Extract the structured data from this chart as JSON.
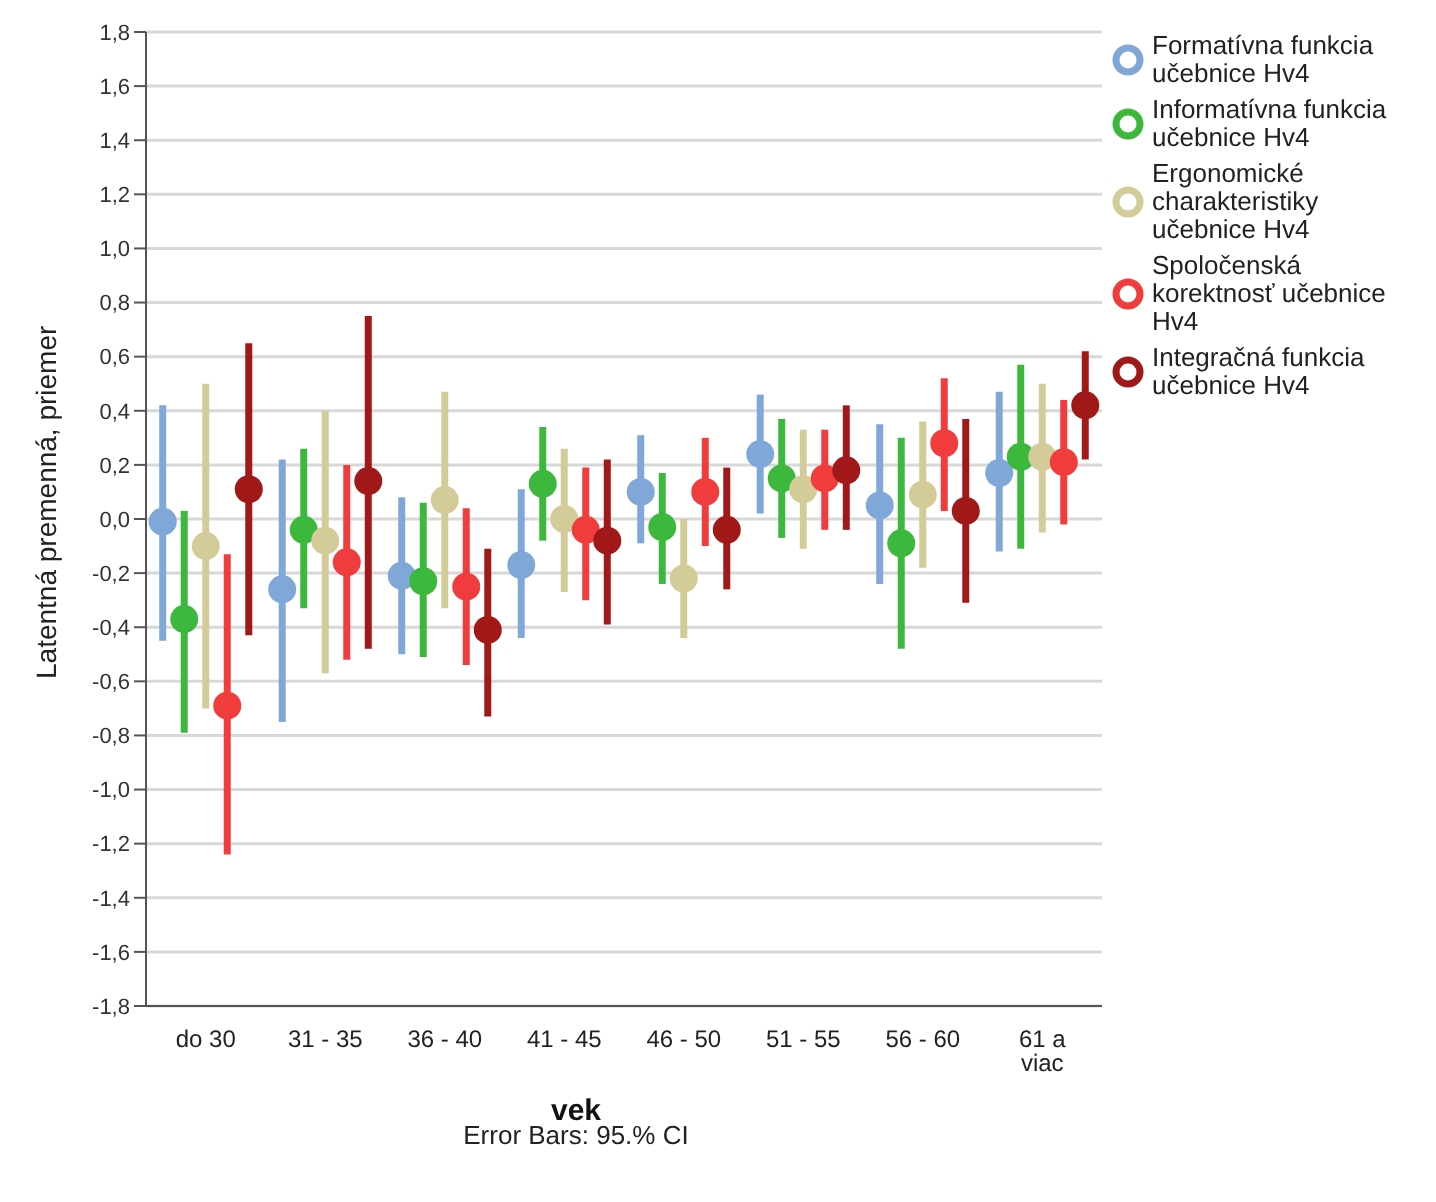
{
  "chart_data": {
    "type": "scatter",
    "xlabel": "vek",
    "ylabel": "Latentná premenná, priemer",
    "annotations": [
      "Error Bars: 95.% CI"
    ],
    "categories": [
      "do 30",
      "31 - 35",
      "36 - 40",
      "41 - 45",
      "46 - 50",
      "51 - 55",
      "56 - 60",
      "61 a viac"
    ],
    "series": [
      {
        "name": "Formatívna funkcia učebnice Hv4",
        "color": "#7fa8d8",
        "values": [
          -0.01,
          -0.26,
          -0.21,
          -0.17,
          0.1,
          0.24,
          0.05,
          0.17
        ],
        "errors": [
          [
            -0.45,
            0.42
          ],
          [
            -0.75,
            0.22
          ],
          [
            -0.5,
            0.08
          ],
          [
            -0.44,
            0.11
          ],
          [
            -0.09,
            0.31
          ],
          [
            0.02,
            0.46
          ],
          [
            -0.24,
            0.35
          ],
          [
            -0.12,
            0.47
          ]
        ]
      },
      {
        "name": "Informatívna funkcia učebnice Hv4",
        "color": "#3cb83c",
        "values": [
          -0.37,
          -0.04,
          -0.23,
          0.13,
          -0.03,
          0.15,
          -0.09,
          0.23
        ],
        "errors": [
          [
            -0.79,
            0.03
          ],
          [
            -0.33,
            0.26
          ],
          [
            -0.51,
            0.06
          ],
          [
            -0.08,
            0.34
          ],
          [
            -0.24,
            0.17
          ],
          [
            -0.07,
            0.37
          ],
          [
            -0.48,
            0.3
          ],
          [
            -0.11,
            0.57
          ]
        ]
      },
      {
        "name": "Ergonomické charakteristiky učebnice Hv4",
        "color": "#d4cc98",
        "values": [
          -0.1,
          -0.08,
          0.07,
          0.0,
          -0.22,
          0.11,
          0.09,
          0.23
        ],
        "errors": [
          [
            -0.7,
            0.5
          ],
          [
            -0.57,
            0.4
          ],
          [
            -0.33,
            0.47
          ],
          [
            -0.27,
            0.26
          ],
          [
            -0.44,
            0.0
          ],
          [
            -0.11,
            0.33
          ],
          [
            -0.18,
            0.36
          ],
          [
            -0.05,
            0.5
          ]
        ]
      },
      {
        "name": "Spoločenská korektnosť učebnice Hv4",
        "color": "#f03c3c",
        "values": [
          -0.69,
          -0.16,
          -0.25,
          -0.04,
          0.1,
          0.15,
          0.28,
          0.21
        ],
        "errors": [
          [
            -1.24,
            -0.13
          ],
          [
            -0.52,
            0.2
          ],
          [
            -0.54,
            0.04
          ],
          [
            -0.3,
            0.19
          ],
          [
            -0.1,
            0.3
          ],
          [
            -0.04,
            0.33
          ],
          [
            0.03,
            0.52
          ],
          [
            -0.02,
            0.44
          ]
        ]
      },
      {
        "name": "Integračná funkcia učebnice Hv4",
        "color": "#a01818",
        "values": [
          0.11,
          0.14,
          -0.41,
          -0.08,
          -0.04,
          0.18,
          0.03,
          0.42
        ],
        "errors": [
          [
            -0.43,
            0.65
          ],
          [
            -0.48,
            0.75
          ],
          [
            -0.73,
            -0.11
          ],
          [
            -0.39,
            0.22
          ],
          [
            -0.26,
            0.19
          ],
          [
            -0.04,
            0.42
          ],
          [
            -0.31,
            0.37
          ],
          [
            0.22,
            0.62
          ]
        ]
      }
    ],
    "ylim": [
      -1.8,
      1.8
    ],
    "yticks": [
      {
        "value": -1.8,
        "label": "-1,8"
      },
      {
        "value": -1.6,
        "label": "-1,6"
      },
      {
        "value": -1.4,
        "label": "-1,4"
      },
      {
        "value": -1.2,
        "label": "-1,2"
      },
      {
        "value": -1.0,
        "label": "-1,0"
      },
      {
        "value": -0.8,
        "label": "-0,8"
      },
      {
        "value": -0.6,
        "label": "-0,6"
      },
      {
        "value": -0.4,
        "label": "-0,4"
      },
      {
        "value": -0.2,
        "label": "-0,2"
      },
      {
        "value": 0,
        "label": "0,0"
      },
      {
        "value": 0.2,
        "label": "0,2"
      },
      {
        "value": 0.4,
        "label": "0,4"
      },
      {
        "value": 0.6,
        "label": "0,6"
      },
      {
        "value": 0.8,
        "label": "0,8"
      },
      {
        "value": 1.0,
        "label": "1,0"
      },
      {
        "value": 1.2,
        "label": "1,2"
      },
      {
        "value": 1.4,
        "label": "1,4"
      },
      {
        "value": 1.6,
        "label": "1,6"
      },
      {
        "value": 1.8,
        "label": "1,8"
      }
    ],
    "grid": "y",
    "legend": "top right",
    "marker": "circle"
  }
}
